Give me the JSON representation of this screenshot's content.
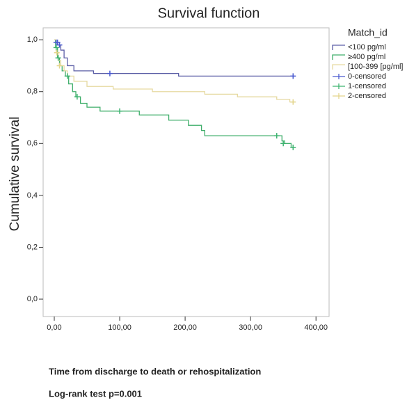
{
  "chart_data": {
    "type": "step",
    "title": "Survival function",
    "y_label": "Cumulative survival",
    "x_label": "Time from discharge to death or rehospitalization",
    "annotation": "Log-rank test p=0.001",
    "legend_title": "Match_id",
    "legend_position": "right",
    "xlim": [
      -17,
      420
    ],
    "ylim": [
      -0.067,
      1.046
    ],
    "xticks": [
      {
        "value": 0,
        "label": "0,00"
      },
      {
        "value": 100,
        "label": "100,00"
      },
      {
        "value": 200,
        "label": "200,00"
      },
      {
        "value": 300,
        "label": "300,00"
      },
      {
        "value": 400,
        "label": "400,00"
      }
    ],
    "yticks": [
      {
        "value": 0,
        "label": "0,0"
      },
      {
        "value": 0.2,
        "label": "0,2"
      },
      {
        "value": 0.4,
        "label": "0,4"
      },
      {
        "value": 0.6,
        "label": "0,6"
      },
      {
        "value": 0.8,
        "label": "0,8"
      },
      {
        "value": 1,
        "label": "1,0"
      }
    ],
    "series": [
      {
        "name": "<100 pg/ml",
        "color": "#5b5ea6",
        "x": [
          0,
          2,
          5,
          10,
          15,
          20,
          30,
          60,
          190,
          365
        ],
        "values": [
          1,
          0.99,
          0.98,
          0.96,
          0.93,
          0.9,
          0.88,
          0.87,
          0.86,
          0.86
        ]
      },
      {
        "name": "≥400  pg/ml",
        "color": "#3fae6a",
        "x": [
          0,
          2,
          5,
          8,
          12,
          17,
          22,
          28,
          33,
          40,
          50,
          70,
          130,
          175,
          205,
          225,
          230,
          348,
          352,
          362,
          365
        ],
        "values": [
          1,
          0.97,
          0.93,
          0.9,
          0.88,
          0.86,
          0.83,
          0.8,
          0.78,
          0.755,
          0.74,
          0.725,
          0.71,
          0.69,
          0.67,
          0.65,
          0.63,
          0.61,
          0.6,
          0.585,
          0.585
        ]
      },
      {
        "name": "[100-399 [pg/ml]",
        "color": "#e6d9a0",
        "x": [
          0,
          3,
          6,
          10,
          15,
          20,
          30,
          50,
          90,
          150,
          230,
          280,
          340,
          360,
          365
        ],
        "values": [
          1,
          0.95,
          0.92,
          0.9,
          0.88,
          0.86,
          0.84,
          0.82,
          0.81,
          0.8,
          0.79,
          0.78,
          0.77,
          0.76,
          0.76
        ]
      }
    ],
    "censored": [
      {
        "name": "0-censored",
        "color": "#4a5ad0",
        "x": [
          3,
          5,
          8,
          85,
          365
        ],
        "values": [
          0.99,
          0.99,
          0.98,
          0.87,
          0.86
        ]
      },
      {
        "name": "1-censored",
        "color": "#3cb36f",
        "x": [
          3,
          6,
          20,
          35,
          100,
          340,
          350,
          365
        ],
        "values": [
          0.97,
          0.93,
          0.86,
          0.78,
          0.725,
          0.63,
          0.6,
          0.585
        ]
      },
      {
        "name": "2-censored",
        "color": "#e3d58c",
        "x": [
          4,
          8,
          365
        ],
        "values": [
          0.95,
          0.9,
          0.76
        ]
      }
    ]
  }
}
